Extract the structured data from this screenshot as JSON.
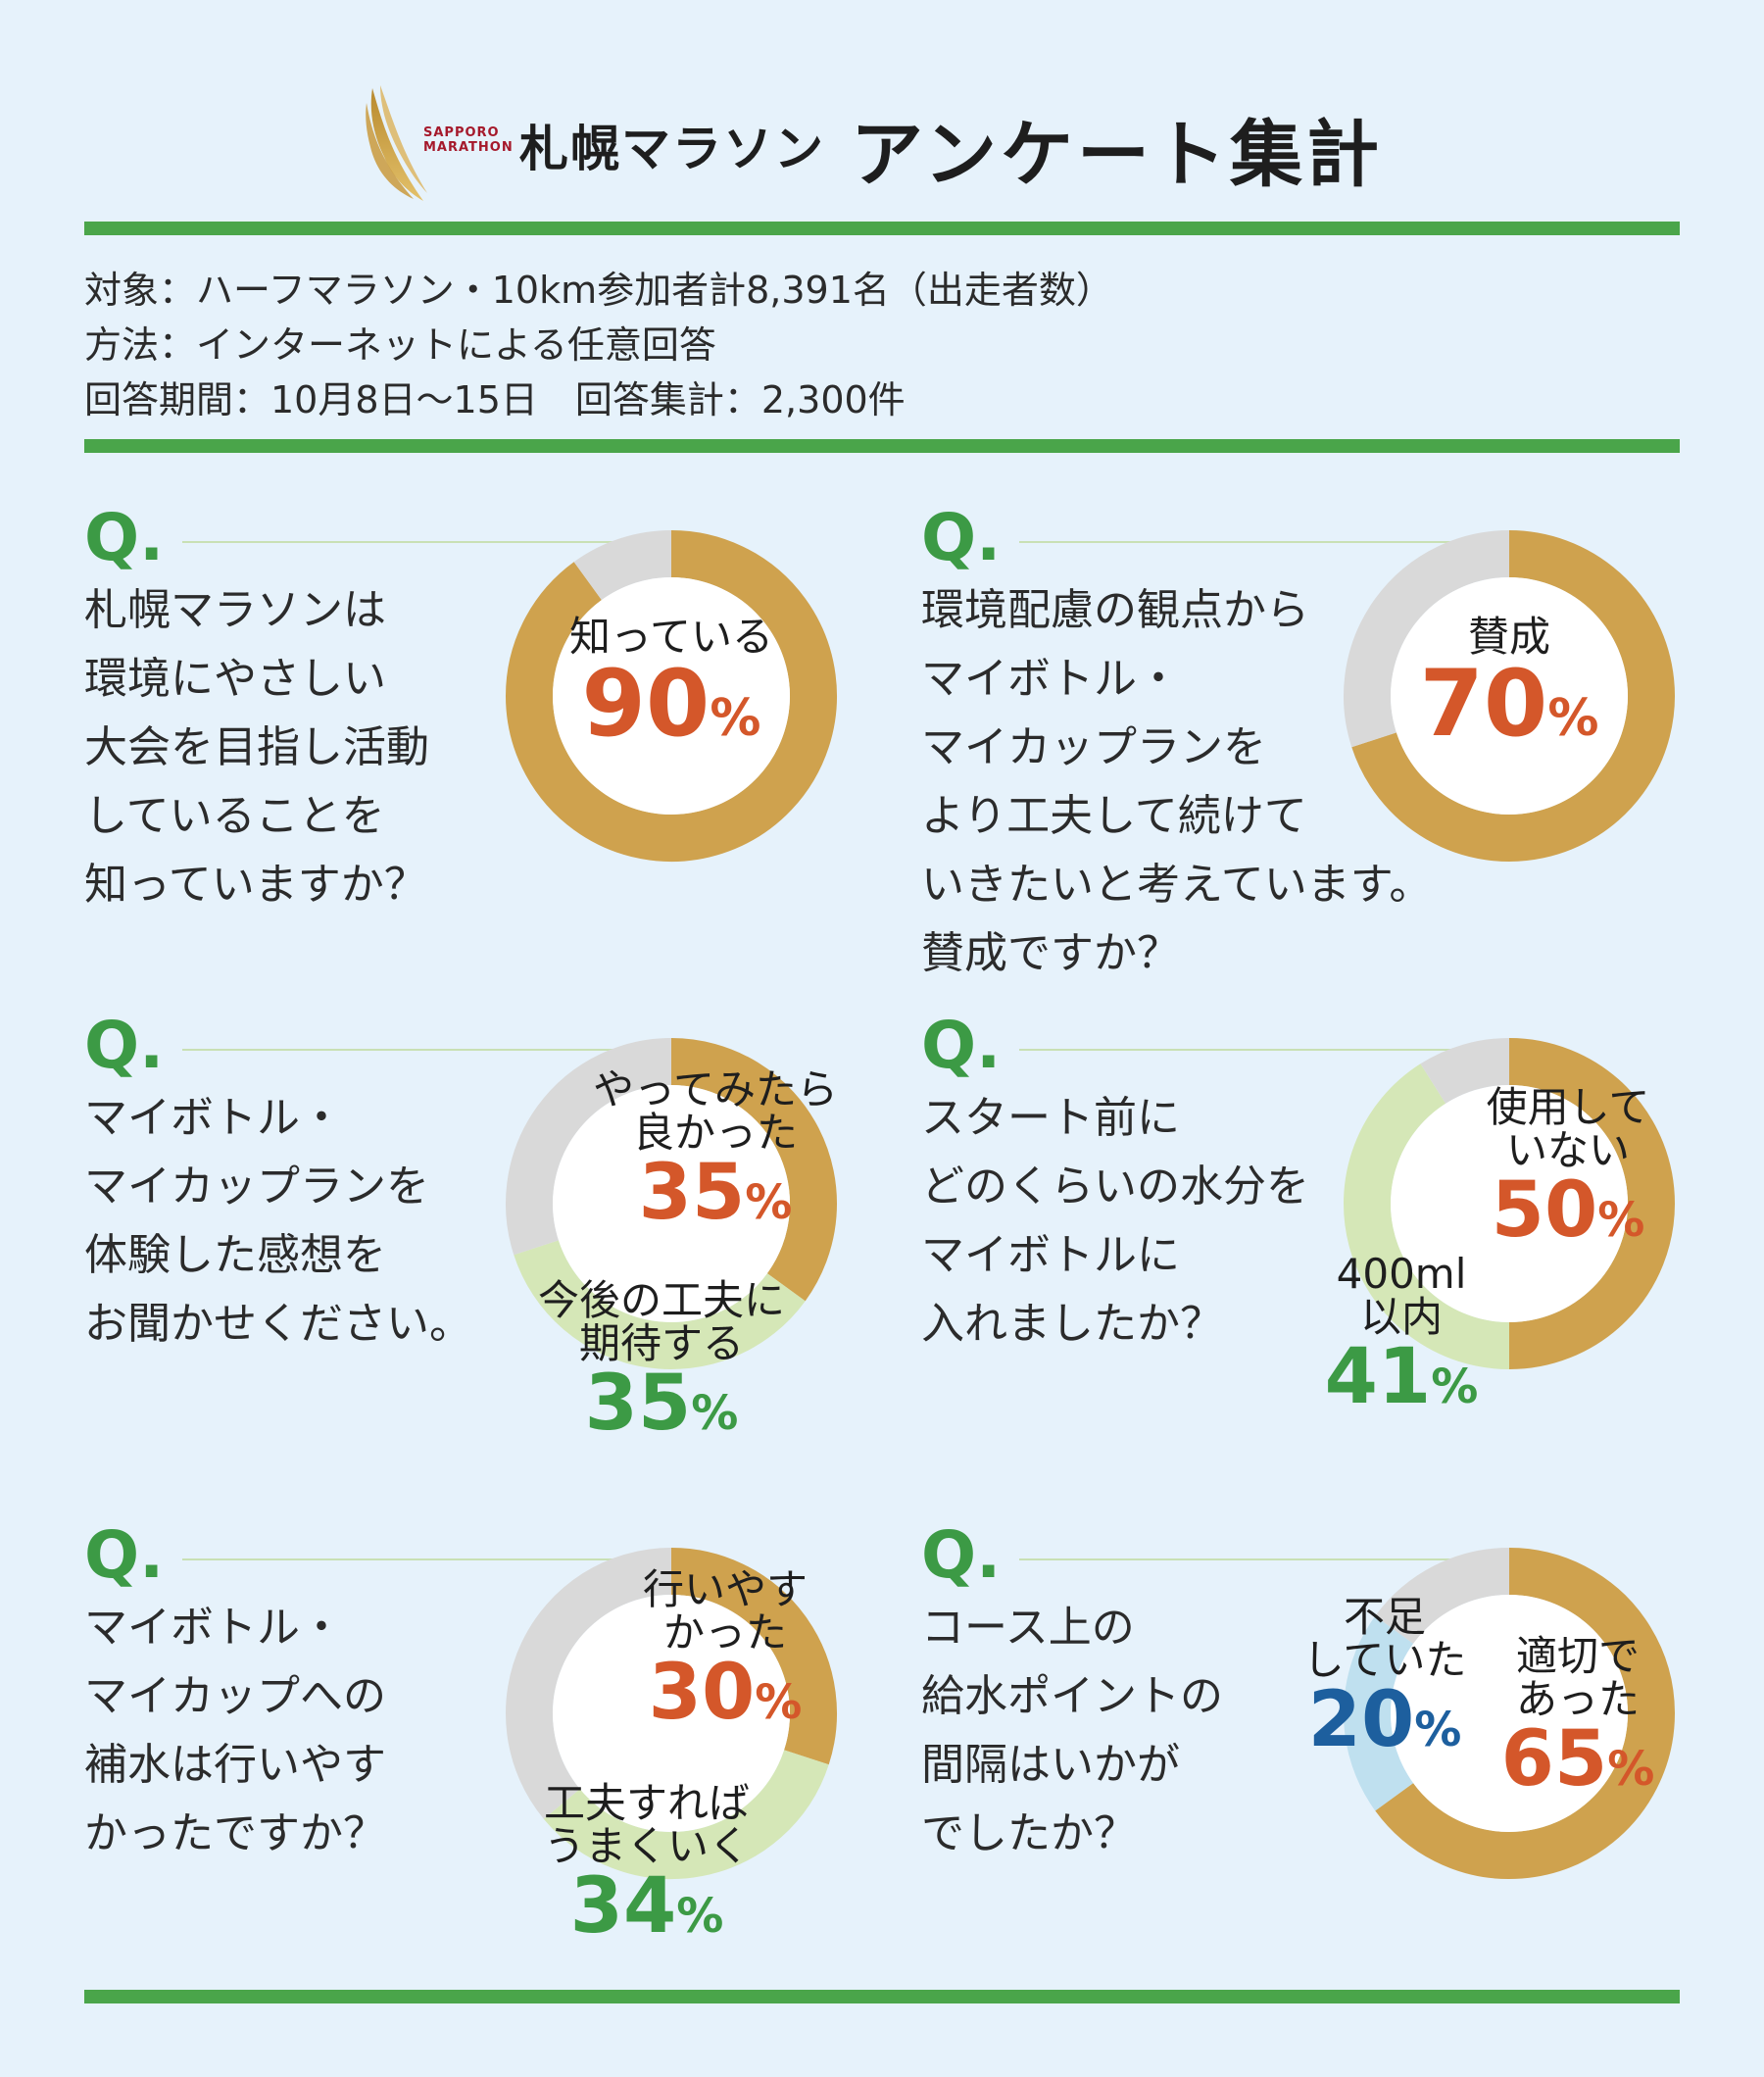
{
  "header": {
    "logo_text_line1": "SAPPORO",
    "logo_text_line2": "MARATHON",
    "brand": "札幌マラソン",
    "title": "アンケート集計"
  },
  "info": {
    "line1": "対象：ハーフマラソン・10km参加者計8,391名（出走者数）",
    "line2": "方法：インターネットによる任意回答",
    "line3": "回答期間：10月8日〜15日　回答集計：2,300件"
  },
  "colors": {
    "gold": "#cfa24e",
    "light_green": "#d5e7b7",
    "light_blue": "#bfe0ef",
    "gray": "#d9d9d9",
    "q_green": "#3c9a45",
    "orange": "#d4572a",
    "blue": "#1d5f9e",
    "rule_green": "#4aa54a"
  },
  "questions": [
    {
      "mark": "Q.",
      "lines": [
        "札幌マラソンは",
        "環境にやさしい",
        "大会を目指し活動",
        "していることを",
        "知っていますか？"
      ]
    },
    {
      "mark": "Q.",
      "lines": [
        "環境配慮の観点から",
        "マイボトル・",
        "マイカップランを",
        "より工夫して続けて",
        "いきたいと考えています。",
        "賛成ですか？"
      ]
    },
    {
      "mark": "Q.",
      "lines": [
        "マイボトル・",
        "マイカップランを",
        "体験した感想を",
        "お聞かせください。"
      ]
    },
    {
      "mark": "Q.",
      "lines": [
        "スタート前に",
        "どのくらいの水分を",
        "マイボトルに",
        "入れましたか？"
      ]
    },
    {
      "mark": "Q.",
      "lines": [
        "マイボトル・",
        "マイカップへの",
        "補水は行いやす",
        "かったですか？"
      ]
    },
    {
      "mark": "Q.",
      "lines": [
        "コース上の",
        "給水ポイントの",
        "間隔はいかが",
        "でしたか？"
      ]
    }
  ],
  "chart_data": [
    {
      "type": "pie",
      "series": [
        {
          "name": "知っている",
          "value": 90,
          "color": "#cfa24e",
          "pct_num": "90",
          "pct_sign": "%"
        },
        {
          "name": "",
          "value": 10,
          "color": "#d9d9d9"
        }
      ]
    },
    {
      "type": "pie",
      "series": [
        {
          "name": "賛成",
          "value": 70,
          "color": "#cfa24e",
          "pct_num": "70",
          "pct_sign": "%"
        },
        {
          "name": "",
          "value": 30,
          "color": "#d9d9d9"
        }
      ]
    },
    {
      "type": "pie",
      "series": [
        {
          "name": "やってみたら 良かった",
          "label_lines": [
            "やってみたら",
            "良かった"
          ],
          "value": 35,
          "color": "#cfa24e",
          "pct_num": "35",
          "pct_sign": "%"
        },
        {
          "name": "今後の工夫に 期待する",
          "label_lines": [
            "今後の工夫に",
            "期待する"
          ],
          "value": 35,
          "color": "#d5e7b7",
          "pct_num": "35",
          "pct_sign": "%"
        },
        {
          "name": "",
          "value": 30,
          "color": "#d9d9d9"
        }
      ]
    },
    {
      "type": "pie",
      "series": [
        {
          "name": "使用して いない",
          "label_lines": [
            "使用して",
            "いない"
          ],
          "value": 50,
          "color": "#cfa24e",
          "pct_num": "50",
          "pct_sign": "%"
        },
        {
          "name": "400ml 以内",
          "label_lines": [
            "400ml",
            "以内"
          ],
          "value": 41,
          "color": "#d5e7b7",
          "pct_num": "41",
          "pct_sign": "%"
        },
        {
          "name": "",
          "value": 9,
          "color": "#d9d9d9"
        }
      ]
    },
    {
      "type": "pie",
      "series": [
        {
          "name": "行いやす かった",
          "label_lines": [
            "行いやす",
            "かった"
          ],
          "value": 30,
          "color": "#cfa24e",
          "pct_num": "30",
          "pct_sign": "%"
        },
        {
          "name": "工夫すれば うまくいく",
          "label_lines": [
            "工夫すれば",
            "うまくいく"
          ],
          "value": 34,
          "color": "#d5e7b7",
          "pct_num": "34",
          "pct_sign": "%"
        },
        {
          "name": "",
          "value": 36,
          "color": "#d9d9d9"
        }
      ]
    },
    {
      "type": "pie",
      "series": [
        {
          "name": "適切で あった",
          "label_lines": [
            "適切で",
            "あった"
          ],
          "value": 65,
          "color": "#cfa24e",
          "pct_num": "65",
          "pct_sign": "%"
        },
        {
          "name": "不足 していた",
          "label_lines": [
            "不足",
            "していた"
          ],
          "value": 20,
          "color": "#bfe0ef",
          "pct_num": "20",
          "pct_sign": "%"
        },
        {
          "name": "",
          "value": 15,
          "color": "#d9d9d9"
        }
      ]
    }
  ]
}
